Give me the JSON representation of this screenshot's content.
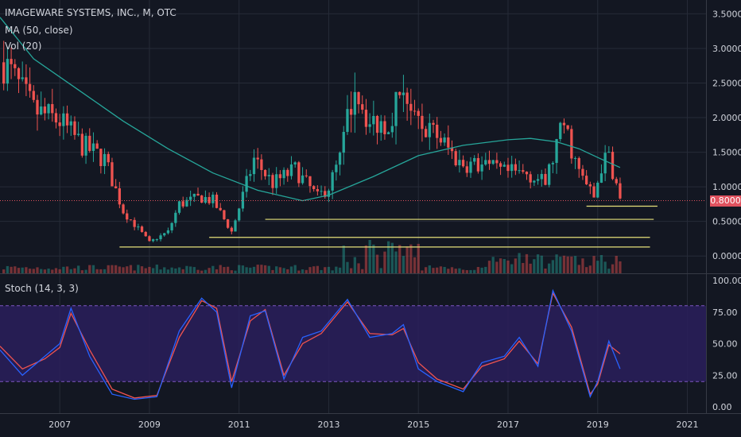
{
  "title": "IMAGEWARE SYSTEMS, INC., M, OTC",
  "indicators": {
    "ma_label": "MA (50, close)",
    "vol_label": "Vol (20)",
    "stoch_label": "Stoch (14, 3, 3)"
  },
  "current_price": {
    "label": "0.8000",
    "value": 0.8
  },
  "colors": {
    "background": "#131722",
    "grid": "#262b38",
    "text": "#d1d4dc",
    "candle_up": "#26a69a",
    "candle_down": "#ef5350",
    "ma": "#26a69a",
    "support_line": "#e6e17a",
    "stoch_k": "#2962ff",
    "stoch_d": "#ef5350",
    "stoch_band": "#2a1e5c",
    "stoch_band_border": "#7e57c2",
    "price_tag": "#e0525f"
  },
  "chart_data": [
    {
      "type": "candlestick",
      "x_axis": {
        "ticks": [
          "2007",
          "2009",
          "2011",
          "2013",
          "2015",
          "2017",
          "2019",
          "2021"
        ],
        "range": [
          "2005-09",
          "2021-06"
        ]
      },
      "y_axis": {
        "ticks": [
          "0.0000",
          "0.5000",
          "1.0000",
          "1.5000",
          "2.0000",
          "2.5000",
          "3.0000",
          "3.5000"
        ],
        "range": [
          -0.25,
          3.7
        ]
      },
      "grid": true,
      "ohlc_keypoints": [
        [
          "2005-10",
          2.8
        ],
        [
          "2006-06",
          2.1
        ],
        [
          "2007-01",
          1.95
        ],
        [
          "2007-07",
          1.6
        ],
        [
          "2008-01",
          1.4
        ],
        [
          "2008-06",
          0.65
        ],
        [
          "2009-01",
          0.2
        ],
        [
          "2009-06",
          0.35
        ],
        [
          "2009-09",
          0.75
        ],
        [
          "2010-03",
          0.85
        ],
        [
          "2010-06",
          0.8
        ],
        [
          "2010-11",
          0.35
        ],
        [
          "2011-05",
          1.4
        ],
        [
          "2011-10",
          1.05
        ],
        [
          "2012-04",
          1.25
        ],
        [
          "2012-10",
          0.85
        ],
        [
          "2013-01",
          1.0
        ],
        [
          "2013-04",
          1.4
        ],
        [
          "2013-08",
          2.5
        ],
        [
          "2013-12",
          1.9
        ],
        [
          "2014-05",
          1.95
        ],
        [
          "2014-09",
          2.5
        ],
        [
          "2014-12",
          1.9
        ],
        [
          "2015-06",
          1.75
        ],
        [
          "2015-12",
          1.35
        ],
        [
          "2016-06",
          1.3
        ],
        [
          "2016-12",
          1.2
        ],
        [
          "2017-06",
          1.2
        ],
        [
          "2017-11",
          1.05
        ],
        [
          "2018-02",
          1.6
        ],
        [
          "2018-04",
          1.9
        ],
        [
          "2018-08",
          1.2
        ],
        [
          "2018-12",
          0.85
        ],
        [
          "2019-02",
          1.3
        ],
        [
          "2019-04",
          1.45
        ],
        [
          "2019-07",
          0.8
        ]
      ],
      "moving_average_50": [
        [
          "2005-09",
          3.45
        ],
        [
          "2006-06",
          2.85
        ],
        [
          "2007-06",
          2.4
        ],
        [
          "2008-06",
          1.95
        ],
        [
          "2009-06",
          1.55
        ],
        [
          "2010-06",
          1.2
        ],
        [
          "2011-06",
          0.95
        ],
        [
          "2012-06",
          0.8
        ],
        [
          "2013-01",
          0.88
        ],
        [
          "2014-01",
          1.15
        ],
        [
          "2015-01",
          1.45
        ],
        [
          "2016-01",
          1.6
        ],
        [
          "2017-01",
          1.68
        ],
        [
          "2017-07",
          1.7
        ],
        [
          "2018-02",
          1.65
        ],
        [
          "2018-08",
          1.55
        ],
        [
          "2019-02",
          1.4
        ],
        [
          "2019-07",
          1.28
        ]
      ],
      "support_lines": [
        {
          "y": 0.72,
          "from": "2018-10",
          "to": "2020-05"
        },
        {
          "y": 0.53,
          "from": "2011-08",
          "to": "2020-04"
        },
        {
          "y": 0.27,
          "from": "2010-05",
          "to": "2020-03"
        },
        {
          "y": 0.13,
          "from": "2008-05",
          "to": "2020-03"
        }
      ]
    },
    {
      "type": "line",
      "name": "Stoch (14, 3, 3)",
      "y_axis": {
        "ticks": [
          "0.00",
          "25.00",
          "50.00",
          "75.00",
          "100.00"
        ],
        "range": [
          0,
          100
        ]
      },
      "bands": [
        20,
        80
      ],
      "series_k": [
        [
          "2005-09",
          45
        ],
        [
          "2006-03",
          25
        ],
        [
          "2006-09",
          40
        ],
        [
          "2007-01",
          50
        ],
        [
          "2007-04",
          78
        ],
        [
          "2007-09",
          40
        ],
        [
          "2008-03",
          10
        ],
        [
          "2008-09",
          6
        ],
        [
          "2009-03",
          8
        ],
        [
          "2009-09",
          60
        ],
        [
          "2010-03",
          86
        ],
        [
          "2010-07",
          75
        ],
        [
          "2010-11",
          15
        ],
        [
          "2011-04",
          72
        ],
        [
          "2011-08",
          76
        ],
        [
          "2012-01",
          22
        ],
        [
          "2012-06",
          55
        ],
        [
          "2012-11",
          60
        ],
        [
          "2013-06",
          85
        ],
        [
          "2013-12",
          55
        ],
        [
          "2014-06",
          58
        ],
        [
          "2014-09",
          65
        ],
        [
          "2015-01",
          30
        ],
        [
          "2015-06",
          20
        ],
        [
          "2016-01",
          12
        ],
        [
          "2016-06",
          35
        ],
        [
          "2016-12",
          40
        ],
        [
          "2017-04",
          55
        ],
        [
          "2017-09",
          32
        ],
        [
          "2018-01",
          92
        ],
        [
          "2018-06",
          60
        ],
        [
          "2018-11",
          8
        ],
        [
          "2019-01",
          20
        ],
        [
          "2019-04",
          52
        ],
        [
          "2019-07",
          30
        ]
      ],
      "series_d": [
        [
          "2005-09",
          48
        ],
        [
          "2006-03",
          30
        ],
        [
          "2006-09",
          38
        ],
        [
          "2007-01",
          47
        ],
        [
          "2007-04",
          74
        ],
        [
          "2007-09",
          45
        ],
        [
          "2008-03",
          14
        ],
        [
          "2008-09",
          7
        ],
        [
          "2009-03",
          9
        ],
        [
          "2009-09",
          55
        ],
        [
          "2010-03",
          84
        ],
        [
          "2010-07",
          78
        ],
        [
          "2010-11",
          20
        ],
        [
          "2011-04",
          68
        ],
        [
          "2011-08",
          77
        ],
        [
          "2012-01",
          25
        ],
        [
          "2012-06",
          50
        ],
        [
          "2012-11",
          58
        ],
        [
          "2013-06",
          83
        ],
        [
          "2013-12",
          58
        ],
        [
          "2014-06",
          57
        ],
        [
          "2014-09",
          62
        ],
        [
          "2015-01",
          35
        ],
        [
          "2015-06",
          22
        ],
        [
          "2016-01",
          14
        ],
        [
          "2016-06",
          32
        ],
        [
          "2016-12",
          38
        ],
        [
          "2017-04",
          52
        ],
        [
          "2017-09",
          34
        ],
        [
          "2018-01",
          90
        ],
        [
          "2018-06",
          63
        ],
        [
          "2018-11",
          10
        ],
        [
          "2019-01",
          18
        ],
        [
          "2019-04",
          49
        ],
        [
          "2019-07",
          42
        ]
      ]
    }
  ]
}
